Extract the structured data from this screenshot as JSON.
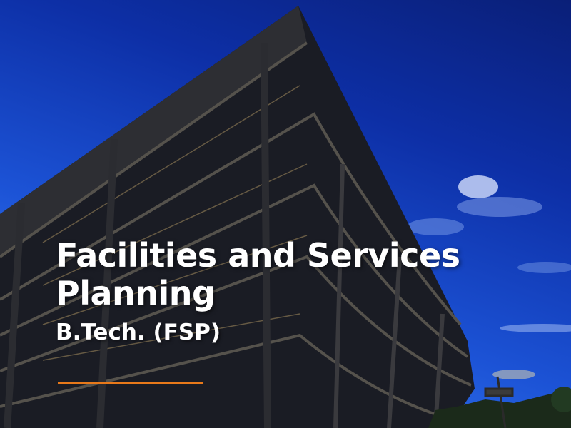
{
  "heading": {
    "line1": "Facilities and Services",
    "line2": "Planning",
    "subtitle": "B.Tech. (FSP)"
  },
  "colors": {
    "accent": "#e8791a",
    "text": "#ffffff",
    "sky": "#1c53d6"
  }
}
